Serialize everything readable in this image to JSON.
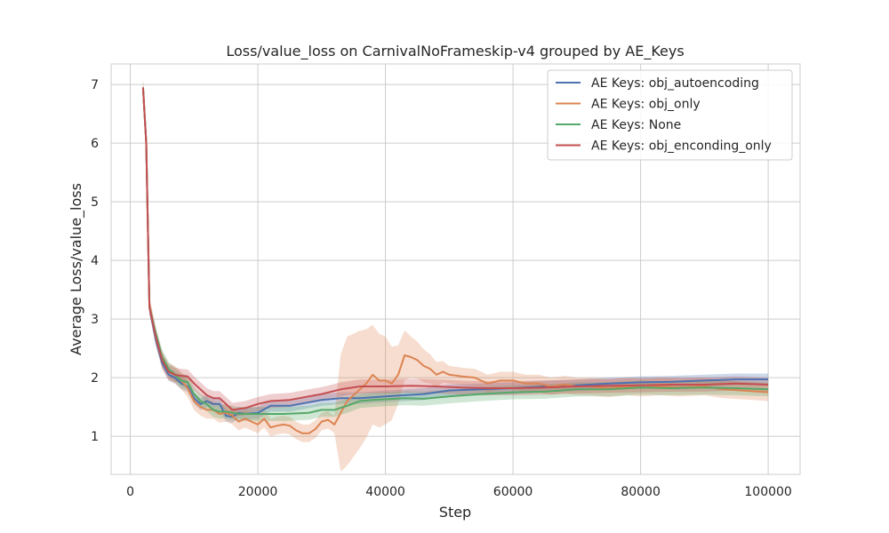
{
  "chart_data": {
    "type": "line",
    "title": "Loss/value_loss on CarnivalNoFrameskip-v4 grouped by AE_Keys",
    "xlabel": "Step",
    "ylabel": "Average Loss/value_loss",
    "xlim": [
      -3000,
      105000
    ],
    "ylim": [
      0.35,
      7.35
    ],
    "x_ticks": [
      0,
      20000,
      40000,
      60000,
      80000,
      100000
    ],
    "y_ticks": [
      1,
      2,
      3,
      4,
      5,
      6,
      7
    ],
    "grid": true,
    "legend_position": "top-right",
    "series": [
      {
        "name": "AE Keys: obj_autoencoding",
        "color": "#4c72b0",
        "points": [
          [
            2000,
            6.95
          ],
          [
            2500,
            6.0
          ],
          [
            3000,
            3.2
          ],
          [
            4000,
            2.65
          ],
          [
            5000,
            2.25
          ],
          [
            6000,
            2.05
          ],
          [
            7000,
            2.0
          ],
          [
            8000,
            1.9
          ],
          [
            9000,
            1.85
          ],
          [
            10000,
            1.65
          ],
          [
            11000,
            1.55
          ],
          [
            12000,
            1.6
          ],
          [
            13000,
            1.55
          ],
          [
            14000,
            1.55
          ],
          [
            15000,
            1.35
          ],
          [
            16000,
            1.33
          ],
          [
            17000,
            1.4
          ],
          [
            18000,
            1.38
          ],
          [
            20000,
            1.4
          ],
          [
            22000,
            1.52
          ],
          [
            25000,
            1.52
          ],
          [
            28000,
            1.58
          ],
          [
            30000,
            1.62
          ],
          [
            33000,
            1.65
          ],
          [
            36000,
            1.65
          ],
          [
            40000,
            1.68
          ],
          [
            43000,
            1.7
          ],
          [
            46000,
            1.72
          ],
          [
            50000,
            1.78
          ],
          [
            55000,
            1.8
          ],
          [
            60000,
            1.82
          ],
          [
            65000,
            1.85
          ],
          [
            70000,
            1.87
          ],
          [
            75000,
            1.9
          ],
          [
            80000,
            1.92
          ],
          [
            85000,
            1.93
          ],
          [
            90000,
            1.95
          ],
          [
            95000,
            1.97
          ],
          [
            100000,
            1.97
          ]
        ],
        "band": 0.1
      },
      {
        "name": "AE Keys: obj_only",
        "color": "#dd8452",
        "points": [
          [
            2000,
            6.95
          ],
          [
            2500,
            6.0
          ],
          [
            3000,
            3.25
          ],
          [
            4000,
            2.7
          ],
          [
            5000,
            2.3
          ],
          [
            6000,
            2.1
          ],
          [
            7000,
            2.05
          ],
          [
            8000,
            1.95
          ],
          [
            9000,
            1.82
          ],
          [
            10000,
            1.6
          ],
          [
            11000,
            1.5
          ],
          [
            12000,
            1.45
          ],
          [
            13000,
            1.45
          ],
          [
            14000,
            1.38
          ],
          [
            15000,
            1.4
          ],
          [
            16000,
            1.35
          ],
          [
            17000,
            1.25
          ],
          [
            18000,
            1.3
          ],
          [
            19000,
            1.25
          ],
          [
            20000,
            1.2
          ],
          [
            21000,
            1.3
          ],
          [
            22000,
            1.15
          ],
          [
            23000,
            1.18
          ],
          [
            24000,
            1.2
          ],
          [
            25000,
            1.18
          ],
          [
            26000,
            1.1
          ],
          [
            27000,
            1.05
          ],
          [
            28000,
            1.05
          ],
          [
            29000,
            1.12
          ],
          [
            30000,
            1.25
          ],
          [
            31000,
            1.28
          ],
          [
            32000,
            1.2
          ],
          [
            33000,
            1.4
          ],
          [
            34000,
            1.6
          ],
          [
            35000,
            1.7
          ],
          [
            36000,
            1.8
          ],
          [
            37000,
            1.9
          ],
          [
            38000,
            2.05
          ],
          [
            39000,
            1.95
          ],
          [
            40000,
            1.95
          ],
          [
            41000,
            1.9
          ],
          [
            42000,
            2.05
          ],
          [
            43000,
            2.38
          ],
          [
            44000,
            2.35
          ],
          [
            45000,
            2.3
          ],
          [
            46000,
            2.2
          ],
          [
            47000,
            2.15
          ],
          [
            48000,
            2.05
          ],
          [
            49000,
            2.1
          ],
          [
            50000,
            2.05
          ],
          [
            52000,
            2.02
          ],
          [
            54000,
            2.0
          ],
          [
            56000,
            1.9
          ],
          [
            58000,
            1.95
          ],
          [
            60000,
            1.95
          ],
          [
            62000,
            1.9
          ],
          [
            64000,
            1.9
          ],
          [
            66000,
            1.85
          ],
          [
            68000,
            1.88
          ],
          [
            70000,
            1.85
          ],
          [
            72000,
            1.85
          ],
          [
            75000,
            1.82
          ],
          [
            78000,
            1.85
          ],
          [
            80000,
            1.83
          ],
          [
            83000,
            1.85
          ],
          [
            86000,
            1.83
          ],
          [
            90000,
            1.85
          ],
          [
            93000,
            1.8
          ],
          [
            96000,
            1.78
          ],
          [
            100000,
            1.75
          ]
        ],
        "band": 0.15,
        "wide_band": [
          [
            33000,
            1.0
          ],
          [
            34000,
            1.1
          ],
          [
            36000,
            1.0
          ],
          [
            38000,
            0.85
          ],
          [
            40000,
            0.75
          ],
          [
            42000,
            0.5
          ],
          [
            44000,
            0.35
          ]
        ]
      },
      {
        "name": "AE Keys: None",
        "color": "#55a868",
        "points": [
          [
            2000,
            6.95
          ],
          [
            2500,
            6.0
          ],
          [
            3000,
            3.2
          ],
          [
            4000,
            2.75
          ],
          [
            5000,
            2.35
          ],
          [
            6000,
            2.15
          ],
          [
            7000,
            2.05
          ],
          [
            8000,
            1.95
          ],
          [
            9000,
            1.92
          ],
          [
            10000,
            1.72
          ],
          [
            11000,
            1.6
          ],
          [
            12000,
            1.55
          ],
          [
            13000,
            1.45
          ],
          [
            14000,
            1.42
          ],
          [
            15000,
            1.42
          ],
          [
            16000,
            1.4
          ],
          [
            17000,
            1.38
          ],
          [
            20000,
            1.38
          ],
          [
            24000,
            1.38
          ],
          [
            28000,
            1.4
          ],
          [
            30000,
            1.45
          ],
          [
            32000,
            1.45
          ],
          [
            34000,
            1.52
          ],
          [
            36000,
            1.6
          ],
          [
            38000,
            1.62
          ],
          [
            40000,
            1.63
          ],
          [
            43000,
            1.65
          ],
          [
            46000,
            1.64
          ],
          [
            50000,
            1.68
          ],
          [
            55000,
            1.72
          ],
          [
            60000,
            1.75
          ],
          [
            65000,
            1.76
          ],
          [
            70000,
            1.8
          ],
          [
            75000,
            1.8
          ],
          [
            80000,
            1.83
          ],
          [
            85000,
            1.82
          ],
          [
            90000,
            1.83
          ],
          [
            95000,
            1.82
          ],
          [
            100000,
            1.8
          ]
        ],
        "band": 0.12
      },
      {
        "name": "AE Keys: obj_enconding_only",
        "color": "#c44e52",
        "points": [
          [
            2000,
            6.95
          ],
          [
            2500,
            6.0
          ],
          [
            3000,
            3.2
          ],
          [
            4000,
            2.7
          ],
          [
            5000,
            2.3
          ],
          [
            6000,
            2.1
          ],
          [
            7000,
            2.05
          ],
          [
            8000,
            2.03
          ],
          [
            9000,
            2.02
          ],
          [
            10000,
            1.9
          ],
          [
            11000,
            1.8
          ],
          [
            12000,
            1.7
          ],
          [
            13000,
            1.65
          ],
          [
            14000,
            1.65
          ],
          [
            15000,
            1.55
          ],
          [
            16000,
            1.45
          ],
          [
            18000,
            1.48
          ],
          [
            20000,
            1.55
          ],
          [
            22000,
            1.6
          ],
          [
            25000,
            1.62
          ],
          [
            28000,
            1.68
          ],
          [
            30000,
            1.72
          ],
          [
            33000,
            1.8
          ],
          [
            36000,
            1.85
          ],
          [
            40000,
            1.85
          ],
          [
            44000,
            1.86
          ],
          [
            48000,
            1.85
          ],
          [
            52000,
            1.83
          ],
          [
            56000,
            1.82
          ],
          [
            60000,
            1.82
          ],
          [
            65000,
            1.83
          ],
          [
            70000,
            1.85
          ],
          [
            75000,
            1.86
          ],
          [
            80000,
            1.87
          ],
          [
            85000,
            1.88
          ],
          [
            90000,
            1.88
          ],
          [
            95000,
            1.9
          ],
          [
            100000,
            1.88
          ]
        ],
        "band": 0.12
      }
    ]
  }
}
